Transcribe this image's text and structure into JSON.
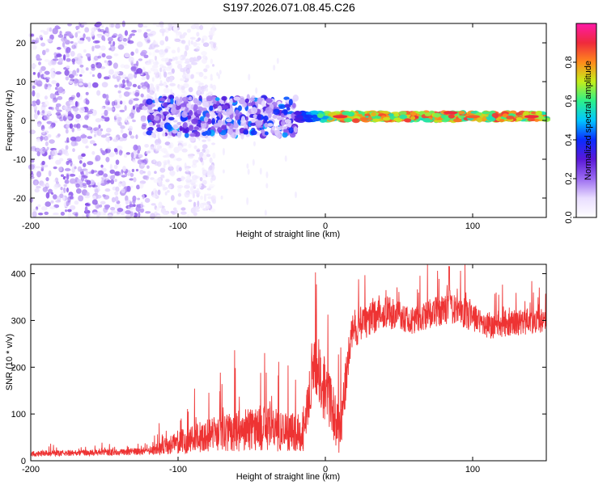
{
  "title": "S197.2026.071.08.45.C26",
  "chart_data": [
    {
      "type": "heatmap",
      "name": "spectrogram",
      "xlabel": "Height of straight line (km)",
      "ylabel": "Frequency (Hz)",
      "xlim": [
        -200,
        150
      ],
      "ylim": [
        -25,
        25
      ],
      "xticks": [
        -200,
        -100,
        0,
        100
      ],
      "yticks": [
        -20,
        -10,
        0,
        10,
        20
      ],
      "colorbar": {
        "label": "Normalized spectral amplitude",
        "range": [
          0.0,
          1.0
        ],
        "ticks": [
          0.0,
          0.2,
          0.4,
          0.6,
          0.8
        ],
        "colormap": [
          "#ffffff",
          "#e9ddff",
          "#9a6af0",
          "#5a18d8",
          "#0a2cff",
          "#00c6ff",
          "#2cf08a",
          "#c4ee1a",
          "#ff8a1c",
          "#ef2a3c",
          "#ff1aa8"
        ]
      },
      "regions": [
        {
          "x_range": [
            -200,
            -120
          ],
          "freq_range": [
            -25,
            25
          ],
          "amplitude_range": [
            0.05,
            0.25
          ],
          "description": "scattered noise"
        },
        {
          "x_range": [
            -120,
            -20
          ],
          "freq_range": [
            -4,
            6
          ],
          "amplitude_range": [
            0.1,
            0.5
          ]
        },
        {
          "x_range": [
            -20,
            150
          ],
          "freq_center_hz": 1,
          "amplitude_range": [
            0.3,
            0.95
          ]
        }
      ],
      "line_peaks": [
        {
          "x": 10,
          "freq": 1,
          "amplitude": 0.9
        },
        {
          "x": 85,
          "freq": 2,
          "amplitude": 0.9
        },
        {
          "x": 100,
          "freq": 1,
          "amplitude": 0.85
        },
        {
          "x": 140,
          "freq": 1,
          "amplitude": 0.9
        }
      ]
    },
    {
      "type": "line",
      "name": "snr",
      "xlabel": "Height of straight line (km)",
      "ylabel": "SNR (10 * v/v)",
      "xlim": [
        -200,
        150
      ],
      "ylim": [
        0,
        420
      ],
      "xticks": [
        -200,
        -100,
        0,
        100
      ],
      "yticks": [
        0,
        100,
        200,
        300,
        400
      ],
      "color": "#ee3333",
      "envelope": [
        {
          "x": -200,
          "mean": 15,
          "spread": 12
        },
        {
          "x": -120,
          "mean": 20,
          "spread": 15
        },
        {
          "x": -100,
          "mean": 40,
          "spread": 50
        },
        {
          "x": -70,
          "mean": 60,
          "spread": 80
        },
        {
          "x": -45,
          "mean": 70,
          "spread": 100
        },
        {
          "x": -15,
          "mean": 60,
          "spread": 80
        },
        {
          "x": -8,
          "mean": 200,
          "spread": 120
        },
        {
          "x": 0,
          "mean": 150,
          "spread": 140
        },
        {
          "x": 10,
          "mean": 60,
          "spread": 100
        },
        {
          "x": 18,
          "mean": 280,
          "spread": 80
        },
        {
          "x": 40,
          "mean": 320,
          "spread": 70
        },
        {
          "x": 60,
          "mean": 300,
          "spread": 60
        },
        {
          "x": 85,
          "mean": 330,
          "spread": 70
        },
        {
          "x": 110,
          "mean": 290,
          "spread": 60
        },
        {
          "x": 150,
          "mean": 300,
          "spread": 50
        }
      ],
      "peak": {
        "x": 84,
        "y": 415
      }
    }
  ]
}
